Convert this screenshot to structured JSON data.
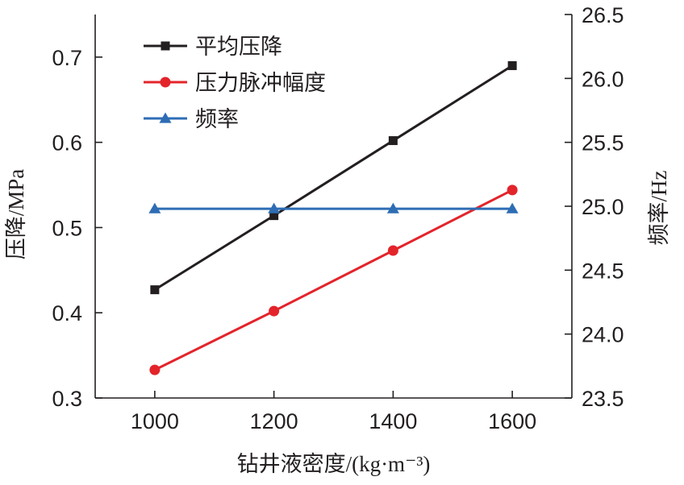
{
  "chart_data": {
    "type": "line",
    "title": "",
    "x": [
      1000,
      1200,
      1400,
      1600
    ],
    "xlabel": "钻井液密度/(kg·m⁻³)",
    "x_ticks": [
      "1000",
      "1200",
      "1400",
      "1600"
    ],
    "xlim": [
      900,
      1700
    ],
    "left_axis": {
      "label": "压降/MPa",
      "ylim": [
        0.3,
        0.75
      ],
      "ticks": [
        "0.3",
        "0.4",
        "0.5",
        "0.6",
        "0.7"
      ]
    },
    "right_axis": {
      "label": "频率/Hz",
      "ylim": [
        23.5,
        26.5
      ],
      "ticks": [
        "23.5",
        "24.0",
        "24.5",
        "25.0",
        "25.5",
        "26.0",
        "26.5"
      ]
    },
    "series": [
      {
        "name": "平均压降",
        "axis": "left",
        "values": [
          0.427,
          0.514,
          0.602,
          0.69
        ],
        "color": "#231f20",
        "marker": "square"
      },
      {
        "name": "压力脉冲幅度",
        "axis": "left",
        "values": [
          0.333,
          0.402,
          0.473,
          0.544
        ],
        "color": "#e3242b",
        "marker": "circle"
      },
      {
        "name": "频率",
        "axis": "right",
        "values": [
          24.98,
          24.98,
          24.98,
          24.98
        ],
        "color": "#2e6db4",
        "marker": "triangle"
      }
    ],
    "legend_position": "top-left",
    "grid": false
  }
}
